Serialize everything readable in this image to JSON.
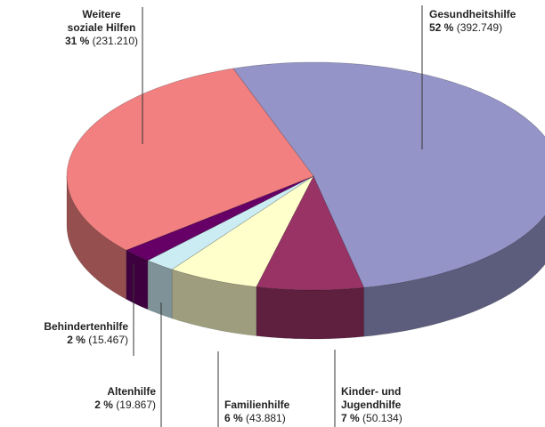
{
  "chart_data": {
    "type": "pie",
    "categories": [
      "Gesundheitshilfe",
      "Kinder- und Jugendhilfe",
      "Familienhilfe",
      "Altenhilfe",
      "Behindertenhilfe",
      "Weitere soziale Hilfen"
    ],
    "values": [
      52,
      7,
      6,
      2,
      2,
      31
    ],
    "value_labels": [
      "52 %",
      "7 %",
      "6 %",
      "2 %",
      "2 %",
      "31 %"
    ],
    "counts": [
      392749,
      50134,
      43881,
      19867,
      15467,
      231210
    ],
    "count_labels": [
      "(392.749)",
      "(50.134)",
      "(43.881)",
      "(19.867)",
      "(15.467)",
      "(231.210)"
    ],
    "colors": [
      "#9494c8",
      "#993366",
      "#ffffcc",
      "#ccecf4",
      "#660066",
      "#f28080"
    ]
  }
}
